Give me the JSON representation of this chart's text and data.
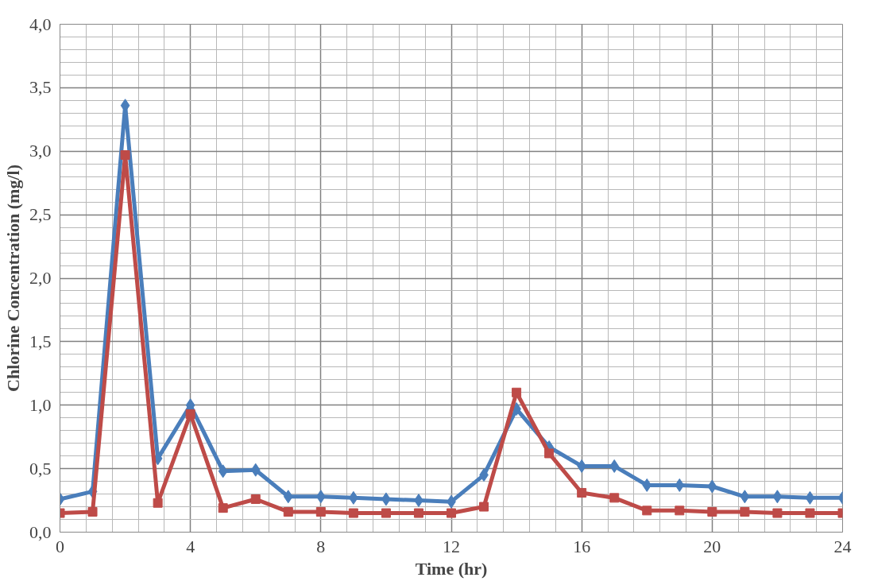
{
  "chart_data": {
    "type": "line",
    "xlabel": "Time (hr)",
    "ylabel": "Chlorine Concentration (mg/l)",
    "x": [
      0,
      1,
      2,
      3,
      4,
      5,
      6,
      7,
      8,
      9,
      10,
      11,
      12,
      13,
      14,
      15,
      16,
      17,
      18,
      19,
      20,
      21,
      22,
      23,
      24
    ],
    "series": [
      {
        "color": "#4a7ebb",
        "marker": "diamond",
        "values": [
          0.26,
          0.32,
          3.36,
          0.58,
          1.0,
          0.48,
          0.49,
          0.28,
          0.28,
          0.27,
          0.26,
          0.25,
          0.24,
          0.45,
          0.97,
          0.67,
          0.52,
          0.52,
          0.37,
          0.37,
          0.36,
          0.28,
          0.28,
          0.27,
          0.27
        ]
      },
      {
        "color": "#be4b48",
        "marker": "square",
        "values": [
          0.15,
          0.16,
          2.97,
          0.23,
          0.93,
          0.19,
          0.26,
          0.16,
          0.16,
          0.15,
          0.15,
          0.15,
          0.15,
          0.2,
          1.1,
          0.62,
          0.31,
          0.27,
          0.17,
          0.17,
          0.16,
          0.16,
          0.15,
          0.15,
          0.15
        ]
      }
    ],
    "xlim": [
      0,
      24
    ],
    "xticks": [
      0,
      4,
      8,
      12,
      16,
      20,
      24
    ],
    "ylim": [
      0,
      4
    ],
    "yticks": [
      {
        "value": 0,
        "label": "0,0"
      },
      {
        "value": 0.5,
        "label": "0,5"
      },
      {
        "value": 1,
        "label": "1,0"
      },
      {
        "value": 1.5,
        "label": "1,5"
      },
      {
        "value": 2,
        "label": "2,0"
      },
      {
        "value": 2.5,
        "label": "2,5"
      },
      {
        "value": 3,
        "label": "3,0"
      },
      {
        "value": 3.5,
        "label": "3,5"
      },
      {
        "value": 4,
        "label": "4,0"
      }
    ],
    "grid": true,
    "line_style": "solid"
  }
}
